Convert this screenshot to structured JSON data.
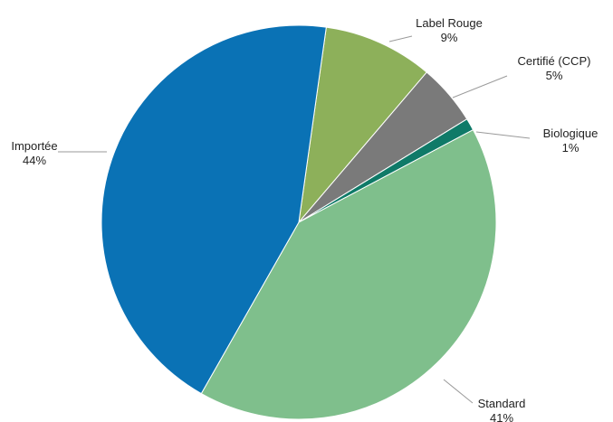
{
  "chart_data": {
    "type": "pie",
    "title": "",
    "slices": [
      {
        "name": "Label Rouge",
        "value": 9,
        "percent_label": "9%",
        "color": "#8db05a"
      },
      {
        "name": "Certifié (CCP)",
        "value": 5,
        "percent_label": "5%",
        "color": "#7a7a7a"
      },
      {
        "name": "Biologique",
        "value": 1,
        "percent_label": "1%",
        "color": "#0f7a68"
      },
      {
        "name": "Standard",
        "value": 41,
        "percent_label": "41%",
        "color": "#7fbf8c"
      },
      {
        "name": "Importée",
        "value": 44,
        "percent_label": "44%",
        "color": "#0a72b5"
      }
    ],
    "start_angle_deg_from_top": 8,
    "direction": "clockwise",
    "data_labels": "outside-with-leader-lines",
    "legend": "none"
  }
}
